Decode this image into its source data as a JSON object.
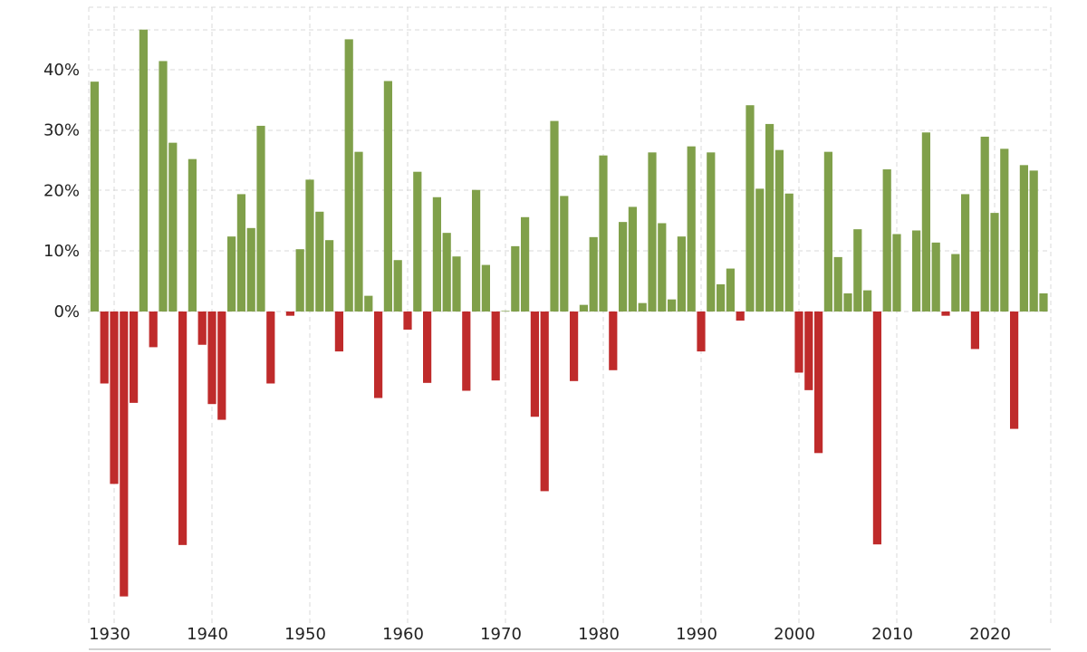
{
  "chart_data": {
    "type": "bar",
    "title": "",
    "xlabel": "",
    "ylabel": "",
    "ylim": [
      -48,
      47
    ],
    "xlim": [
      1927.4,
      2025.6
    ],
    "grid": true,
    "y_tick_values": [
      0,
      10,
      20,
      30,
      40
    ],
    "y_tick_labels": [
      "0%",
      "10%",
      "20%",
      "30%",
      "40%"
    ],
    "x_tick_values": [
      1930,
      1940,
      1950,
      1960,
      1970,
      1980,
      1990,
      2000,
      2010,
      2020
    ],
    "x_tick_labels": [
      "1930",
      "1940",
      "1950",
      "1960",
      "1970",
      "1980",
      "1990",
      "2000",
      "2010",
      "2020"
    ],
    "colors": {
      "positive": "#80a04a",
      "negative": "#bf2b2b",
      "grid": "#d9d9d9",
      "text": "#222222"
    },
    "categories": [
      1928,
      1929,
      1930,
      1931,
      1932,
      1933,
      1934,
      1935,
      1936,
      1937,
      1938,
      1939,
      1940,
      1941,
      1942,
      1943,
      1944,
      1945,
      1946,
      1947,
      1948,
      1949,
      1950,
      1951,
      1952,
      1953,
      1954,
      1955,
      1956,
      1957,
      1958,
      1959,
      1960,
      1961,
      1962,
      1963,
      1964,
      1965,
      1966,
      1967,
      1968,
      1969,
      1970,
      1971,
      1972,
      1973,
      1974,
      1975,
      1976,
      1977,
      1978,
      1979,
      1980,
      1981,
      1982,
      1983,
      1984,
      1985,
      1986,
      1987,
      1988,
      1989,
      1990,
      1991,
      1992,
      1993,
      1994,
      1995,
      1996,
      1997,
      1998,
      1999,
      2000,
      2001,
      2002,
      2003,
      2004,
      2005,
      2006,
      2007,
      2008,
      2009,
      2010,
      2011,
      2012,
      2013,
      2014,
      2015,
      2016,
      2017,
      2018,
      2019,
      2020,
      2021,
      2022,
      2023,
      2024,
      2025
    ],
    "values": [
      38.0,
      -11.9,
      -28.5,
      -47.1,
      -15.1,
      46.6,
      -5.9,
      41.4,
      27.9,
      -38.6,
      25.2,
      -5.5,
      -15.3,
      -17.9,
      12.4,
      19.4,
      13.8,
      30.7,
      -11.9,
      0.0,
      -0.7,
      10.3,
      21.8,
      16.5,
      11.8,
      -6.6,
      45.0,
      26.4,
      2.6,
      -14.3,
      38.1,
      8.5,
      -3.0,
      23.1,
      -11.8,
      18.9,
      13.0,
      9.1,
      -13.1,
      20.1,
      7.7,
      -11.4,
      0.1,
      10.8,
      15.6,
      -17.4,
      -29.7,
      31.5,
      19.1,
      -11.5,
      1.1,
      12.3,
      25.8,
      -9.7,
      14.8,
      17.3,
      1.4,
      26.3,
      14.6,
      2.0,
      12.4,
      27.3,
      -6.6,
      26.3,
      4.5,
      7.1,
      -1.5,
      34.1,
      20.3,
      31.0,
      26.7,
      19.5,
      -10.1,
      -13.0,
      -23.4,
      26.4,
      9.0,
      3.0,
      13.6,
      3.5,
      -38.5,
      23.5,
      12.8,
      0.0,
      13.4,
      29.6,
      11.4,
      -0.7,
      9.5,
      19.4,
      -6.2,
      28.9,
      16.3,
      26.9,
      -19.4,
      24.2,
      23.3,
      3.0
    ]
  }
}
